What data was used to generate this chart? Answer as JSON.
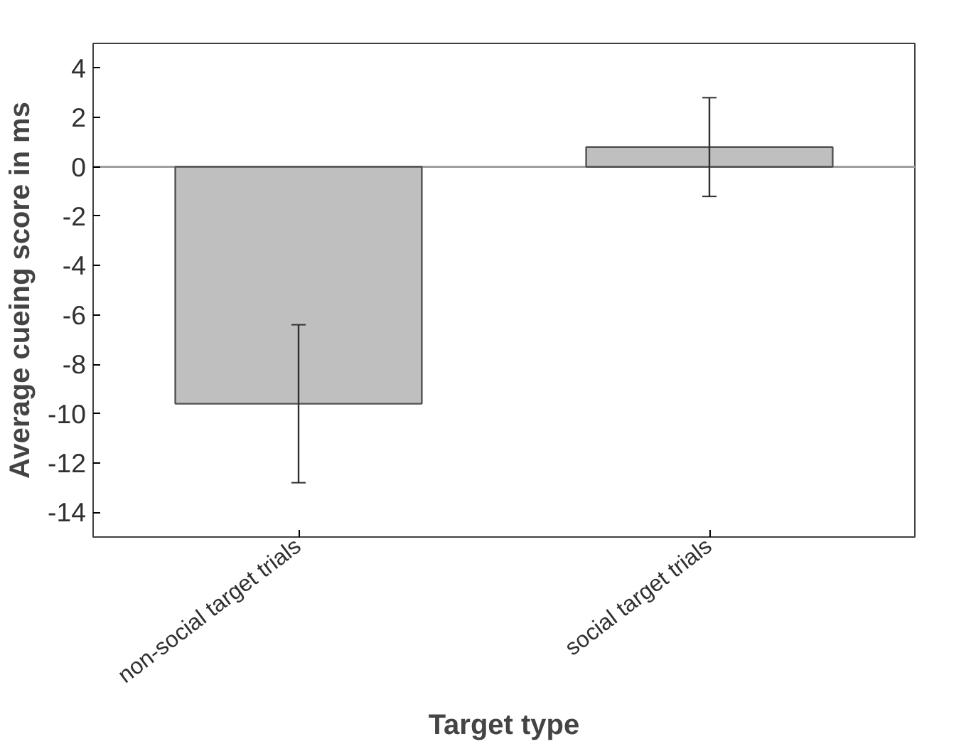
{
  "chart_data": {
    "type": "bar",
    "xlabel": "Target type",
    "ylabel": "Average cueing score in ms",
    "categories": [
      "non-social target trials",
      "social target trials"
    ],
    "values": [
      -9.6,
      0.8
    ],
    "errors": [
      3.2,
      2.0
    ],
    "color": "#bfbfbf",
    "ylim": [
      -15,
      5
    ],
    "yticks": [
      -14,
      -12,
      -10,
      -8,
      -6,
      -4,
      -2,
      0,
      2,
      4
    ],
    "ref_lines": [
      {
        "axis": "y",
        "value": 0,
        "color": "#a0a0a0"
      }
    ],
    "grid": false
  }
}
